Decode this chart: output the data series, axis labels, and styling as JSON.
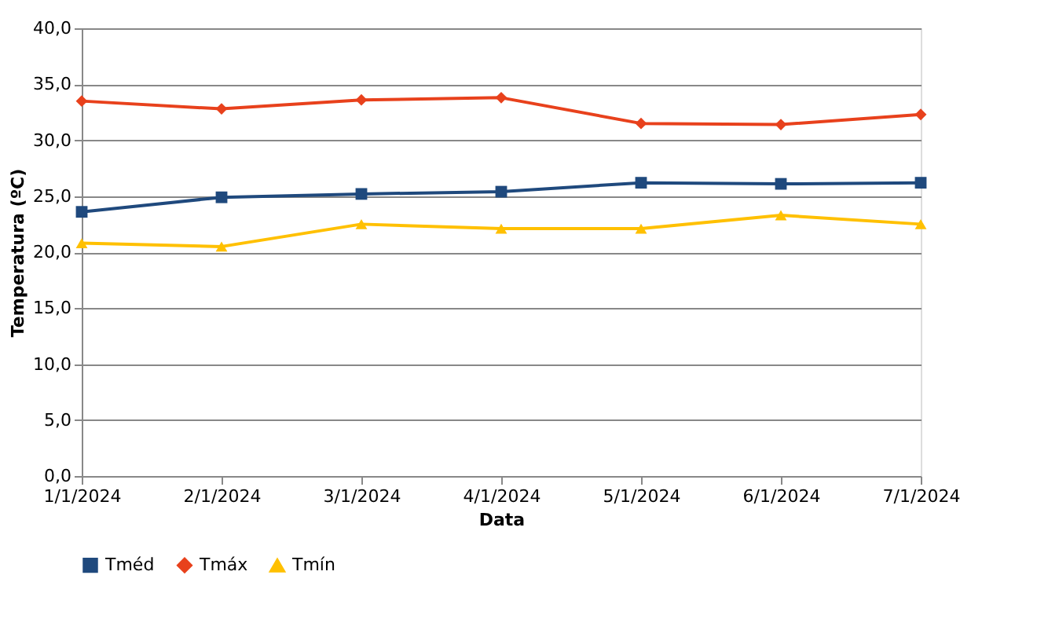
{
  "chart_data": {
    "type": "line",
    "xlabel": "Data",
    "ylabel": "Temperatura (ºC)",
    "categories": [
      "1/1/2024",
      "2/1/2024",
      "3/1/2024",
      "4/1/2024",
      "5/1/2024",
      "6/1/2024",
      "7/1/2024"
    ],
    "series": [
      {
        "name": "Tméd",
        "color": "#1f497d",
        "marker": "square",
        "values": [
          23.6,
          24.9,
          25.2,
          25.4,
          26.2,
          26.1,
          26.2
        ]
      },
      {
        "name": "Tmáx",
        "color": "#e8411c",
        "marker": "diamond",
        "values": [
          33.5,
          32.8,
          33.6,
          33.8,
          31.5,
          31.4,
          32.3
        ]
      },
      {
        "name": "Tmín",
        "color": "#ffc000",
        "marker": "triangle",
        "values": [
          20.8,
          20.5,
          22.5,
          22.1,
          22.1,
          23.3,
          22.5
        ]
      }
    ],
    "ylim": [
      0,
      40
    ],
    "yticks": [
      {
        "value": 0,
        "label": "0,0"
      },
      {
        "value": 5,
        "label": "5,0"
      },
      {
        "value": 10,
        "label": "10,0"
      },
      {
        "value": 15,
        "label": "15,0"
      },
      {
        "value": 20,
        "label": "20,0"
      },
      {
        "value": 25,
        "label": "25,0"
      },
      {
        "value": 30,
        "label": "30,0"
      },
      {
        "value": 35,
        "label": "35,0"
      },
      {
        "value": 40,
        "label": "40,0"
      }
    ],
    "grid": "y",
    "legend": "bottom",
    "line_style": "solid"
  }
}
